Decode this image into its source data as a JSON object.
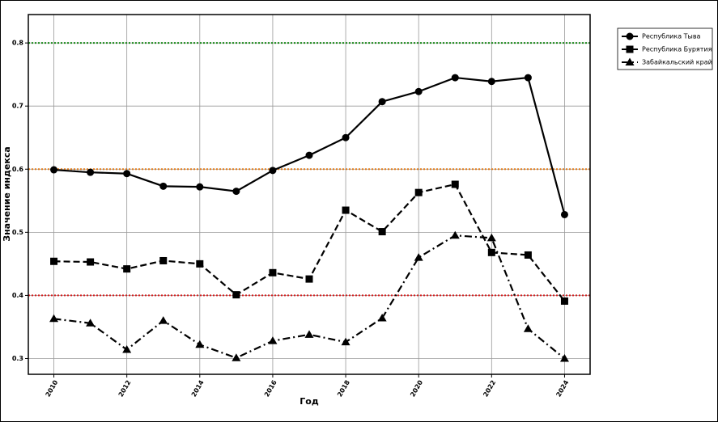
{
  "chart_data": {
    "type": "line",
    "x_label": "Год",
    "y_label": "Значение индекса",
    "x": [
      2010,
      2011,
      2012,
      2013,
      2014,
      2015,
      2016,
      2017,
      2018,
      2019,
      2020,
      2021,
      2022,
      2023,
      2024
    ],
    "xlim": [
      2009.3,
      2024.7
    ],
    "xticks": [
      2010,
      2012,
      2014,
      2016,
      2018,
      2020,
      2022,
      2024
    ],
    "ylim": [
      0.275,
      0.845
    ],
    "yticks": [
      0.3,
      0.4,
      0.5,
      0.6,
      0.7,
      0.8
    ],
    "grid": true,
    "legend": "outside-upper-right",
    "reference_lines": [
      {
        "value": 0.8,
        "color": "#1a8a1a"
      },
      {
        "value": 0.6,
        "color": "#e07b1a"
      },
      {
        "value": 0.4,
        "color": "#d62020"
      }
    ],
    "series": [
      {
        "name": "Республика Тыва",
        "color": "#000000",
        "marker": "circle",
        "dash": "solid",
        "values": [
          0.599,
          0.595,
          0.593,
          0.573,
          0.572,
          0.565,
          0.598,
          0.622,
          0.65,
          0.707,
          0.723,
          0.745,
          0.739,
          0.745,
          0.528
        ]
      },
      {
        "name": "Республика Бурятия",
        "color": "#000000",
        "marker": "square",
        "dash": "dashed",
        "values": [
          0.454,
          0.453,
          0.442,
          0.455,
          0.45,
          0.401,
          0.436,
          0.426,
          0.535,
          0.501,
          0.563,
          0.576,
          0.468,
          0.464,
          0.391
        ]
      },
      {
        "name": "Забайкальский край",
        "color": "#000000",
        "marker": "triangle",
        "dash": "dashdot",
        "values": [
          0.363,
          0.356,
          0.314,
          0.36,
          0.322,
          0.301,
          0.328,
          0.338,
          0.326,
          0.364,
          0.46,
          0.495,
          0.491,
          0.347,
          0.3
        ]
      }
    ]
  }
}
